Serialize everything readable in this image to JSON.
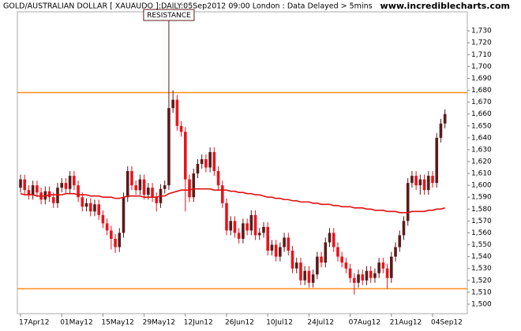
{
  "chart_data": {
    "type": "candlestick",
    "title": "GOLD/AUSTRALIAN DOLLAR [ XAUAUDO ]:DAILY:05Sep2012 09:00 London : Data Delayed > 5mins",
    "source": "www.incrediblecharts.com",
    "categories": [
      "17Apr12",
      null,
      null,
      null,
      null,
      null,
      null,
      null,
      null,
      null,
      "01May12",
      null,
      null,
      null,
      null,
      null,
      null,
      null,
      null,
      null,
      "15May12",
      null,
      null,
      null,
      null,
      null,
      null,
      null,
      null,
      null,
      "29May12",
      null,
      null,
      null,
      null,
      null,
      null,
      null,
      null,
      null,
      "12Jun12",
      null,
      null,
      null,
      null,
      null,
      null,
      null,
      null,
      null,
      "26Jun12",
      null,
      null,
      null,
      null,
      null,
      null,
      null,
      null,
      null,
      "10Jul12",
      null,
      null,
      null,
      null,
      null,
      null,
      null,
      null,
      null,
      "24Jul12",
      null,
      null,
      null,
      null,
      null,
      null,
      null,
      null,
      null,
      "07Aug12",
      null,
      null,
      null,
      null,
      null,
      null,
      null,
      null,
      null,
      "21Aug12",
      null,
      null,
      null,
      null,
      null,
      null,
      null,
      null,
      null,
      "04Sep12",
      null,
      null,
      null
    ],
    "open": [
      1598,
      1605,
      1596,
      1592,
      1600,
      1594,
      1588,
      1595,
      1590,
      1585,
      1598,
      1602,
      1597,
      1608,
      1600,
      1590,
      1582,
      1585,
      1578,
      1584,
      1575,
      1568,
      1562,
      1555,
      1548,
      1560,
      1590,
      1612,
      1600,
      1596,
      1605,
      1592,
      1598,
      1590,
      1585,
      1597,
      1600,
      1665,
      1672,
      1650,
      1645,
      1605,
      1590,
      1610,
      1618,
      1622,
      1615,
      1628,
      1612,
      1600,
      1585,
      1562,
      1570,
      1560,
      1555,
      1568,
      1562,
      1575,
      1558,
      1560,
      1565,
      1545,
      1550,
      1540,
      1548,
      1556,
      1545,
      1530,
      1535,
      1520,
      1528,
      1518,
      1525,
      1540,
      1535,
      1552,
      1560,
      1548,
      1540,
      1535,
      1530,
      1522,
      1518,
      1525,
      1520,
      1528,
      1522,
      1526,
      1535,
      1530,
      1522,
      1540,
      1548,
      1558,
      1570,
      1602,
      1608,
      1600,
      1605,
      1596,
      1608,
      1602,
      1640,
      1652
    ],
    "high": [
      1609,
      1609,
      1600,
      1604,
      1604,
      1598,
      1599,
      1599,
      1594,
      1602,
      1606,
      1606,
      1612,
      1612,
      1604,
      1594,
      1589,
      1589,
      1588,
      1588,
      1579,
      1572,
      1566,
      1559,
      1564,
      1594,
      1616,
      1616,
      1604,
      1609,
      1609,
      1602,
      1602,
      1594,
      1601,
      1604,
      1746,
      1680,
      1676,
      1654,
      1649,
      1609,
      1614,
      1622,
      1626,
      1626,
      1632,
      1632,
      1616,
      1604,
      1589,
      1574,
      1574,
      1564,
      1572,
      1572,
      1579,
      1579,
      1564,
      1569,
      1569,
      1554,
      1554,
      1552,
      1560,
      1560,
      1549,
      1539,
      1539,
      1532,
      1532,
      1529,
      1544,
      1544,
      1556,
      1564,
      1564,
      1552,
      1544,
      1539,
      1534,
      1526,
      1529,
      1529,
      1532,
      1532,
      1530,
      1539,
      1539,
      1534,
      1544,
      1552,
      1562,
      1574,
      1606,
      1612,
      1612,
      1609,
      1609,
      1612,
      1612,
      1644,
      1656,
      1664
    ],
    "low": [
      1594,
      1592,
      1588,
      1588,
      1590,
      1584,
      1584,
      1586,
      1581,
      1581,
      1594,
      1593,
      1593,
      1596,
      1586,
      1578,
      1578,
      1574,
      1574,
      1571,
      1564,
      1558,
      1546,
      1543,
      1544,
      1556,
      1586,
      1596,
      1592,
      1592,
      1588,
      1588,
      1586,
      1578,
      1581,
      1593,
      1596,
      1661,
      1646,
      1641,
      1578,
      1586,
      1586,
      1606,
      1614,
      1611,
      1611,
      1608,
      1596,
      1581,
      1558,
      1558,
      1556,
      1551,
      1551,
      1558,
      1558,
      1554,
      1554,
      1556,
      1541,
      1541,
      1536,
      1536,
      1544,
      1541,
      1526,
      1526,
      1516,
      1516,
      1514,
      1514,
      1521,
      1531,
      1531,
      1548,
      1544,
      1536,
      1531,
      1526,
      1518,
      1508,
      1514,
      1516,
      1516,
      1518,
      1518,
      1522,
      1526,
      1513,
      1518,
      1536,
      1544,
      1554,
      1566,
      1598,
      1596,
      1592,
      1592,
      1592,
      1598,
      1598,
      1636,
      1648
    ],
    "close": [
      1605,
      1596,
      1592,
      1600,
      1594,
      1588,
      1595,
      1590,
      1585,
      1598,
      1602,
      1597,
      1608,
      1600,
      1590,
      1582,
      1585,
      1578,
      1584,
      1575,
      1568,
      1562,
      1555,
      1548,
      1560,
      1590,
      1612,
      1600,
      1596,
      1605,
      1592,
      1598,
      1590,
      1585,
      1597,
      1600,
      1665,
      1672,
      1650,
      1645,
      1605,
      1590,
      1610,
      1618,
      1622,
      1615,
      1628,
      1612,
      1600,
      1585,
      1562,
      1570,
      1560,
      1555,
      1568,
      1562,
      1575,
      1558,
      1560,
      1565,
      1545,
      1550,
      1540,
      1548,
      1556,
      1545,
      1530,
      1535,
      1520,
      1528,
      1518,
      1525,
      1540,
      1535,
      1552,
      1560,
      1548,
      1540,
      1535,
      1530,
      1522,
      1518,
      1525,
      1520,
      1528,
      1522,
      1526,
      1535,
      1530,
      1522,
      1540,
      1548,
      1558,
      1570,
      1602,
      1608,
      1600,
      1605,
      1596,
      1608,
      1602,
      1640,
      1652,
      1660
    ],
    "up_color": "#5c1a1a",
    "down_color": "#e8141c",
    "moving_average": {
      "color": "#e01010",
      "values": [
        1593,
        1592,
        1592,
        1592,
        1591,
        1591,
        1591,
        1592,
        1592,
        1592,
        1592,
        1593,
        1593,
        1593,
        1592,
        1592,
        1592,
        1591,
        1591,
        1591,
        1590,
        1590,
        1590,
        1589,
        1589,
        1590,
        1591,
        1591,
        1591,
        1591,
        1590,
        1590,
        1590,
        1590,
        1591,
        1591,
        1593,
        1594,
        1595,
        1596,
        1596,
        1596,
        1597,
        1597,
        1597,
        1597,
        1597,
        1596,
        1596,
        1596,
        1596,
        1595,
        1595,
        1594,
        1594,
        1593,
        1593,
        1592,
        1592,
        1591,
        1590,
        1590,
        1589,
        1589,
        1588,
        1588,
        1587,
        1587,
        1586,
        1586,
        1586,
        1585,
        1585,
        1584,
        1584,
        1584,
        1583,
        1583,
        1582,
        1582,
        1582,
        1581,
        1581,
        1581,
        1580,
        1580,
        1579,
        1579,
        1579,
        1578,
        1578,
        1578,
        1577,
        1577,
        1577,
        1578,
        1578,
        1578,
        1578,
        1579,
        1579,
        1580,
        1580,
        1581
      ]
    },
    "hlines": {
      "color": "#ff8c1a",
      "values": [
        1678,
        1513
      ]
    },
    "annotation": "RESISTANCE",
    "ylim": [
      1492,
      1746
    ],
    "yticks": [
      {
        "value": 1500,
        "label": "1,500"
      },
      {
        "value": 1510,
        "label": "1,510"
      },
      {
        "value": 1520,
        "label": "1,520"
      },
      {
        "value": 1530,
        "label": "1,530"
      },
      {
        "value": 1540,
        "label": "1,540"
      },
      {
        "value": 1550,
        "label": "1,550"
      },
      {
        "value": 1560,
        "label": "1,560"
      },
      {
        "value": 1570,
        "label": "1,570"
      },
      {
        "value": 1580,
        "label": "1,580"
      },
      {
        "value": 1590,
        "label": "1,590"
      },
      {
        "value": 1600,
        "label": "1,600"
      },
      {
        "value": 1610,
        "label": "1,610"
      },
      {
        "value": 1620,
        "label": "1,620"
      },
      {
        "value": 1630,
        "label": "1,630"
      },
      {
        "value": 1640,
        "label": "1,640"
      },
      {
        "value": 1650,
        "label": "1,650"
      },
      {
        "value": 1660,
        "label": "1,660"
      },
      {
        "value": 1670,
        "label": "1,670"
      },
      {
        "value": 1680,
        "label": "1,680"
      },
      {
        "value": 1690,
        "label": "1,690"
      },
      {
        "value": 1700,
        "label": "1,700"
      },
      {
        "value": 1710,
        "label": "1,710"
      },
      {
        "value": 1720,
        "label": "1,720"
      },
      {
        "value": 1730,
        "label": "1,730"
      }
    ]
  }
}
